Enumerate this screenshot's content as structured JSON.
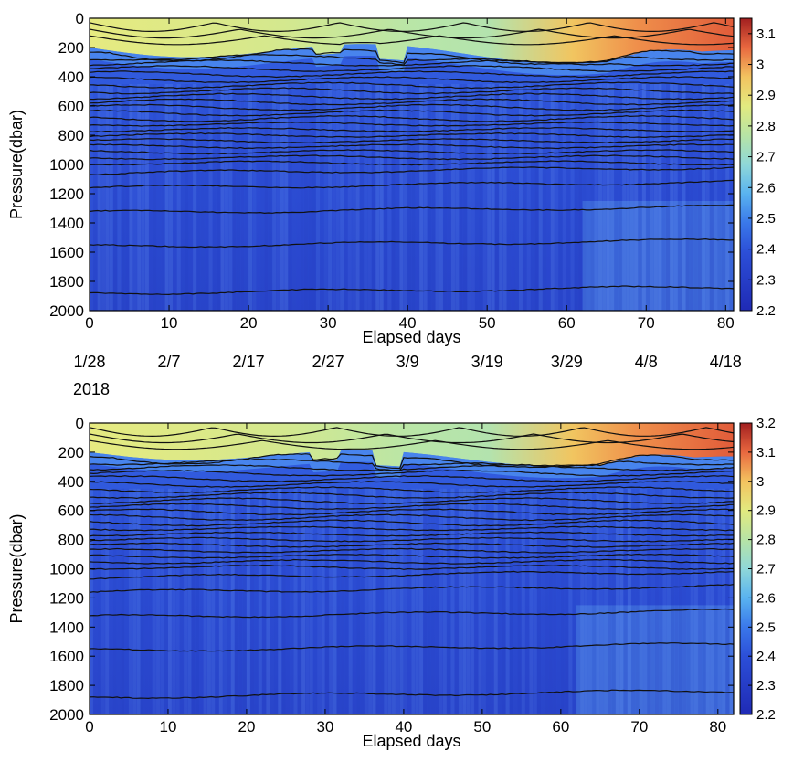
{
  "chart_data": [
    {
      "type": "heatmap",
      "xlabel": "Elapsed days",
      "ylabel": "Pressure(dbar)",
      "xlim": [
        0,
        81
      ],
      "ylim": [
        2000,
        0
      ],
      "y_reversed": true,
      "xticks": [
        0,
        10,
        20,
        30,
        40,
        50,
        60,
        70,
        80
      ],
      "yticks": [
        0,
        200,
        400,
        600,
        800,
        1000,
        1200,
        1400,
        1600,
        1800,
        2000
      ],
      "colorbar": {
        "min": 2.2,
        "max": 3.15,
        "ticks": [
          2.2,
          2.3,
          2.4,
          2.5,
          2.6,
          2.7,
          2.8,
          2.9,
          3,
          3.1
        ],
        "colormap": "jet"
      },
      "contours": true,
      "date_labels": [
        {
          "day": 0,
          "text": "1/28"
        },
        {
          "day": 10,
          "text": "2/7"
        },
        {
          "day": 20,
          "text": "2/17"
        },
        {
          "day": 30,
          "text": "2/27"
        },
        {
          "day": 40,
          "text": "3/9"
        },
        {
          "day": 50,
          "text": "3/19"
        },
        {
          "day": 60,
          "text": "3/29"
        },
        {
          "day": 70,
          "text": "4/8"
        },
        {
          "day": 80,
          "text": "4/18"
        }
      ],
      "year_label": "2018"
    },
    {
      "type": "heatmap",
      "xlabel": "Elapsed days",
      "ylabel": "Pressure(dbar)",
      "xlim": [
        0,
        82
      ],
      "ylim": [
        2000,
        0
      ],
      "y_reversed": true,
      "xticks": [
        0,
        10,
        20,
        30,
        40,
        50,
        60,
        70,
        80
      ],
      "yticks": [
        0,
        200,
        400,
        600,
        800,
        1000,
        1200,
        1400,
        1600,
        1800,
        2000
      ],
      "colorbar": {
        "min": 2.2,
        "max": 3.2,
        "ticks": [
          2.2,
          2.3,
          2.4,
          2.5,
          2.6,
          2.7,
          2.8,
          2.9,
          3,
          3.1,
          3.2
        ],
        "colormap": "jet"
      },
      "contours": true
    }
  ]
}
